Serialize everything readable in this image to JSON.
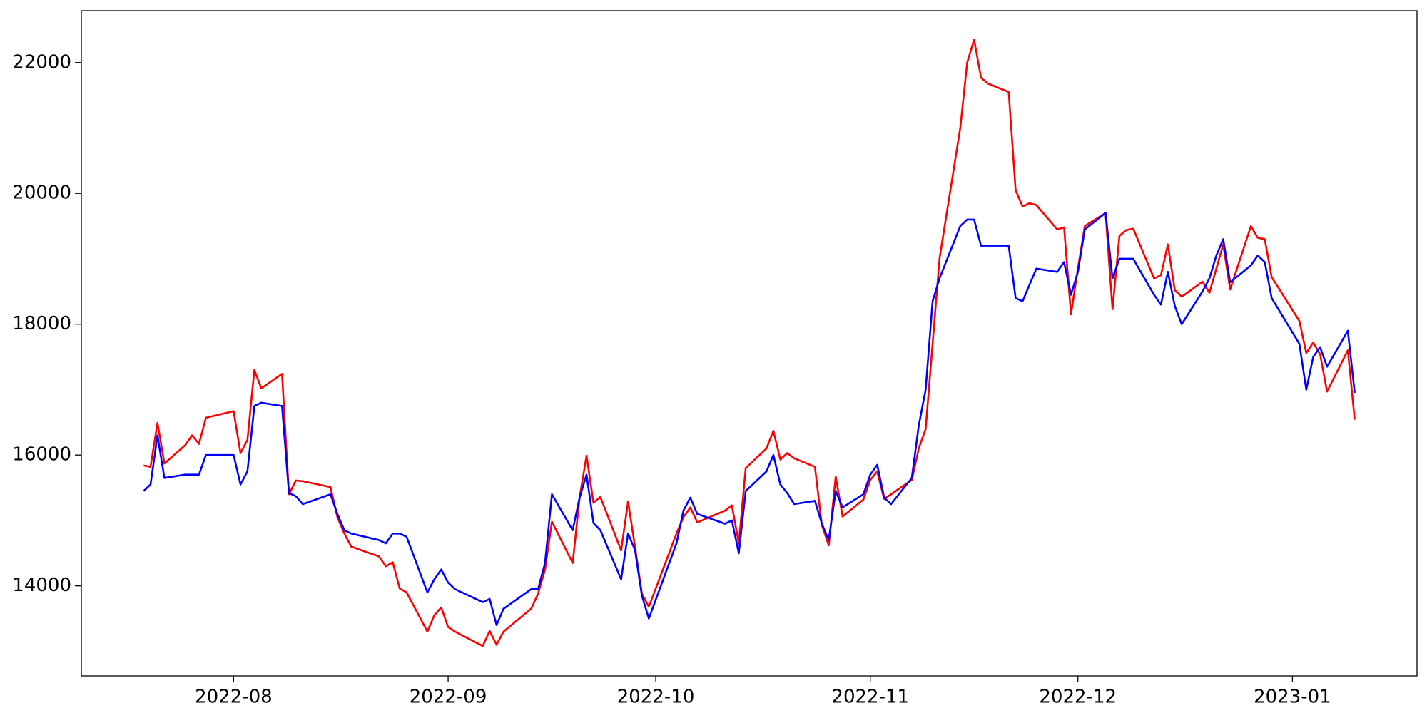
{
  "chart_data": {
    "type": "line",
    "x": [
      "2022-07-19",
      "2022-07-20",
      "2022-07-21",
      "2022-07-22",
      "2022-07-25",
      "2022-07-26",
      "2022-07-27",
      "2022-07-28",
      "2022-08-01",
      "2022-08-02",
      "2022-08-03",
      "2022-08-04",
      "2022-08-05",
      "2022-08-08",
      "2022-08-09",
      "2022-08-10",
      "2022-08-11",
      "2022-08-15",
      "2022-08-16",
      "2022-08-17",
      "2022-08-18",
      "2022-08-22",
      "2022-08-23",
      "2022-08-24",
      "2022-08-25",
      "2022-08-26",
      "2022-08-29",
      "2022-08-30",
      "2022-08-31",
      "2022-09-01",
      "2022-09-02",
      "2022-09-06",
      "2022-09-07",
      "2022-09-08",
      "2022-09-09",
      "2022-09-13",
      "2022-09-14",
      "2022-09-15",
      "2022-09-16",
      "2022-09-19",
      "2022-09-20",
      "2022-09-21",
      "2022-09-22",
      "2022-09-23",
      "2022-09-26",
      "2022-09-27",
      "2022-09-28",
      "2022-09-29",
      "2022-09-30",
      "2022-10-04",
      "2022-10-05",
      "2022-10-06",
      "2022-10-07",
      "2022-10-11",
      "2022-10-12",
      "2022-10-13",
      "2022-10-14",
      "2022-10-17",
      "2022-10-18",
      "2022-10-19",
      "2022-10-20",
      "2022-10-21",
      "2022-10-24",
      "2022-10-25",
      "2022-10-26",
      "2022-10-27",
      "2022-10-28",
      "2022-10-31",
      "2022-11-01",
      "2022-11-02",
      "2022-11-03",
      "2022-11-04",
      "2022-11-07",
      "2022-11-08",
      "2022-11-09",
      "2022-11-10",
      "2022-11-11",
      "2022-11-14",
      "2022-11-15",
      "2022-11-16",
      "2022-11-17",
      "2022-11-18",
      "2022-11-21",
      "2022-11-22",
      "2022-11-23",
      "2022-11-24",
      "2022-11-25",
      "2022-11-28",
      "2022-11-29",
      "2022-11-30",
      "2022-12-01",
      "2022-12-02",
      "2022-12-05",
      "2022-12-06",
      "2022-12-07",
      "2022-12-08",
      "2022-12-09",
      "2022-12-12",
      "2022-12-13",
      "2022-12-14",
      "2022-12-15",
      "2022-12-16",
      "2022-12-19",
      "2022-12-20",
      "2022-12-21",
      "2022-12-22",
      "2022-12-23",
      "2022-12-26",
      "2022-12-27",
      "2022-12-28",
      "2022-12-29",
      "2023-01-02",
      "2023-01-03",
      "2023-01-04",
      "2023-01-05",
      "2023-01-06",
      "2023-01-09",
      "2023-01-10"
    ],
    "series": [
      {
        "color": "#ff0000",
        "values": [
          15840,
          15820,
          16490,
          15870,
          16150,
          16300,
          16170,
          16570,
          16670,
          16030,
          16230,
          17300,
          17020,
          17240,
          15400,
          15610,
          15600,
          15510,
          15050,
          14800,
          14600,
          14450,
          14300,
          14360,
          13960,
          13900,
          13300,
          13550,
          13670,
          13370,
          13300,
          13080,
          13310,
          13100,
          13300,
          13650,
          13880,
          14250,
          14980,
          14350,
          15350,
          15990,
          15270,
          15360,
          14540,
          15290,
          14600,
          13880,
          13680,
          14800,
          15050,
          15200,
          14970,
          15150,
          15230,
          14650,
          15800,
          16100,
          16370,
          15930,
          16030,
          15950,
          15820,
          14930,
          14620,
          15670,
          15060,
          15320,
          15620,
          15750,
          15330,
          15400,
          15620,
          16100,
          16400,
          17700,
          19000,
          21000,
          22000,
          22350,
          21770,
          21680,
          21550,
          20050,
          19800,
          19850,
          19820,
          19450,
          19480,
          18150,
          18850,
          19500,
          19700,
          18230,
          19350,
          19440,
          19460,
          18700,
          18750,
          19220,
          18520,
          18420,
          18650,
          18480,
          18850,
          19220,
          18530,
          19500,
          19320,
          19300,
          18720,
          18050,
          17560,
          17720,
          17540,
          16970,
          17600,
          16540
        ]
      },
      {
        "color": "#0000ff",
        "values": [
          15450,
          15550,
          16300,
          15650,
          15700,
          15700,
          15700,
          16000,
          16000,
          15550,
          15750,
          16750,
          16800,
          16750,
          15420,
          15370,
          15250,
          15400,
          15100,
          14850,
          14800,
          14700,
          14650,
          14800,
          14800,
          14750,
          13900,
          14100,
          14250,
          14050,
          13950,
          13750,
          13800,
          13400,
          13650,
          13950,
          13950,
          14350,
          15400,
          14850,
          15350,
          15700,
          14960,
          14850,
          14100,
          14800,
          14550,
          13850,
          13500,
          14650,
          15150,
          15350,
          15100,
          14950,
          15000,
          14500,
          15450,
          15750,
          16000,
          15550,
          15420,
          15250,
          15300,
          14950,
          14700,
          15450,
          15200,
          15400,
          15700,
          15850,
          15350,
          15250,
          15650,
          16450,
          17000,
          18350,
          18700,
          19500,
          19600,
          19600,
          19200,
          19200,
          19200,
          18400,
          18350,
          18600,
          18850,
          18800,
          18950,
          18450,
          18800,
          19450,
          19700,
          18700,
          19000,
          19000,
          19000,
          18450,
          18300,
          18800,
          18280,
          18000,
          18500,
          18700,
          19050,
          19300,
          18640,
          18900,
          19050,
          18950,
          18400,
          17700,
          17000,
          17500,
          17650,
          17350,
          17900,
          16950
        ]
      }
    ],
    "xlim": [
      "2022-07-10",
      "2023-01-19"
    ],
    "xticks": [
      {
        "value": "2022-08-01",
        "label": "2022-08"
      },
      {
        "value": "2022-09-01",
        "label": "2022-09"
      },
      {
        "value": "2022-10-01",
        "label": "2022-10"
      },
      {
        "value": "2022-11-01",
        "label": "2022-11"
      },
      {
        "value": "2022-12-01",
        "label": "2022-12"
      },
      {
        "value": "2023-01-01",
        "label": "2023-01"
      }
    ],
    "ylim": [
      12623,
      22793
    ],
    "yticks": [
      14000,
      16000,
      18000,
      20000,
      22000
    ],
    "grid": false
  }
}
